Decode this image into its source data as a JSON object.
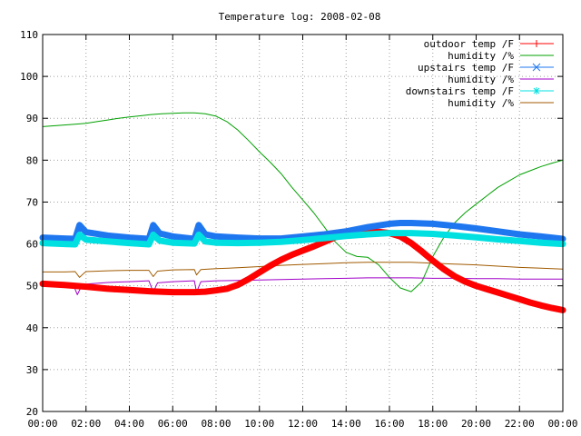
{
  "chart_data": {
    "type": "line",
    "title": "Temperature log: 2008-02-08",
    "xlabel": "",
    "ylabel": "",
    "xlim": [
      0,
      24
    ],
    "ylim": [
      20,
      110
    ],
    "x_ticks": [
      "00:00",
      "02:00",
      "04:00",
      "06:00",
      "08:00",
      "10:00",
      "12:00",
      "14:00",
      "16:00",
      "18:00",
      "20:00",
      "22:00",
      "00:00"
    ],
    "y_ticks": [
      "20",
      "30",
      "40",
      "50",
      "60",
      "70",
      "80",
      "90",
      "100",
      "110"
    ],
    "grid": true,
    "legend_position": "top-right",
    "series": [
      {
        "name": "outdoor temp /F",
        "color": "#ff0000",
        "marker": "plus",
        "thick": true,
        "x": [
          0,
          1,
          2,
          3,
          4,
          5,
          6,
          7,
          7.5,
          8,
          8.5,
          9,
          9.5,
          10,
          10.5,
          11,
          11.5,
          12,
          12.5,
          13,
          13.5,
          14,
          14.5,
          15,
          15.5,
          16,
          16.5,
          17,
          17.5,
          18,
          18.5,
          19,
          19.5,
          20,
          20.5,
          21,
          21.5,
          22,
          22.5,
          23,
          23.5,
          24
        ],
        "y": [
          50.5,
          50.2,
          49.8,
          49.3,
          49.0,
          48.7,
          48.5,
          48.5,
          48.6,
          48.9,
          49.3,
          50.2,
          51.6,
          53.2,
          54.8,
          56.2,
          57.4,
          58.4,
          59.4,
          60.5,
          61.6,
          62.4,
          62.9,
          63.0,
          62.9,
          62.6,
          61.8,
          60.2,
          58.2,
          56.0,
          54.0,
          52.3,
          51.0,
          50.0,
          49.2,
          48.4,
          47.6,
          46.8,
          46.0,
          45.3,
          44.7,
          44.2
        ]
      },
      {
        "name": "humidity /%",
        "color": "#00a000",
        "marker": "",
        "thick": false,
        "x": [
          0,
          0.5,
          1,
          1.5,
          2,
          2.5,
          3,
          3.5,
          4,
          4.5,
          5,
          5.5,
          6,
          6.5,
          7,
          7.5,
          8,
          8.5,
          9,
          9.5,
          10,
          10.5,
          11,
          11.5,
          12,
          12.5,
          13,
          13.5,
          14,
          14.5,
          15,
          15.5,
          16,
          16.5,
          17,
          17.5,
          18,
          18.5,
          19,
          19.5,
          20,
          20.5,
          21,
          21.5,
          22,
          22.5,
          23,
          23.5,
          24
        ],
        "y": [
          88,
          88.2,
          88.4,
          88.6,
          88.8,
          89.2,
          89.6,
          90,
          90.3,
          90.6,
          90.9,
          91.1,
          91.2,
          91.3,
          91.3,
          91.1,
          90.5,
          89.2,
          87.2,
          84.7,
          82,
          79.5,
          76.8,
          73.5,
          70.5,
          67.5,
          64,
          60.5,
          58,
          57,
          56.8,
          55,
          52,
          49.5,
          48.6,
          51,
          57,
          61.5,
          65,
          67.5,
          69.5,
          71.5,
          73.5,
          75,
          76.5,
          77.5,
          78.5,
          79.3,
          80
        ]
      },
      {
        "name": "upstairs temp /F",
        "color": "#1f77f0",
        "marker": "cross",
        "thick": true,
        "x": [
          0,
          1,
          1.5,
          1.7,
          2,
          3,
          4,
          4.9,
          5.1,
          5.4,
          6,
          7,
          7.2,
          7.5,
          8,
          9,
          10,
          11,
          12,
          13,
          14,
          15,
          16,
          16.5,
          17,
          18,
          19,
          20,
          21,
          22,
          23,
          24
        ],
        "y": [
          61.5,
          61.3,
          61.2,
          64.5,
          62.8,
          62,
          61.5,
          61.2,
          64.5,
          62.5,
          61.8,
          61.2,
          64.5,
          62.3,
          61.8,
          61.5,
          61.3,
          61.3,
          61.8,
          62.3,
          63,
          64,
          64.8,
          65,
          65,
          64.8,
          64.3,
          63.7,
          63,
          62.3,
          61.8,
          61.2
        ]
      },
      {
        "name": "humidity /%",
        "color": "#a000c8",
        "marker": "",
        "thick": false,
        "x": [
          0,
          1,
          1.4,
          1.6,
          1.8,
          2,
          3,
          4,
          4.9,
          5.1,
          5.3,
          6,
          7,
          7.1,
          7.3,
          8,
          9,
          10,
          11,
          12,
          13,
          14,
          15,
          16,
          17,
          18,
          19,
          20,
          21,
          22,
          23,
          24
        ],
        "y": [
          50.8,
          50.5,
          50.4,
          47.9,
          50,
          50.4,
          50.8,
          51,
          51.2,
          48.5,
          50.7,
          51,
          51.2,
          48.5,
          51,
          51.2,
          51.3,
          51.4,
          51.5,
          51.6,
          51.7,
          51.8,
          51.9,
          51.9,
          51.9,
          51.8,
          51.8,
          51.7,
          51.7,
          51.6,
          51.6,
          51.6
        ]
      },
      {
        "name": "downstairs temp /F",
        "color": "#00e0e0",
        "marker": "star",
        "thick": true,
        "x": [
          0,
          1,
          1.5,
          1.7,
          2,
          3,
          4,
          4.9,
          5.1,
          5.4,
          6,
          7,
          7.2,
          7.5,
          8,
          9,
          10,
          11,
          12,
          13,
          14,
          15,
          16,
          17,
          18,
          19,
          20,
          21,
          22,
          23,
          24
        ],
        "y": [
          60.2,
          60,
          59.9,
          62.2,
          61,
          60.6,
          60.2,
          59.9,
          62.2,
          60.8,
          60.3,
          60.1,
          62.2,
          60.6,
          60.3,
          60.2,
          60.3,
          60.5,
          60.9,
          61.4,
          61.9,
          62.3,
          62.6,
          62.6,
          62.4,
          62,
          61.6,
          61.1,
          60.7,
          60.3,
          60
        ]
      },
      {
        "name": "humidity /%",
        "color": "#a05a00",
        "marker": "",
        "thick": false,
        "x": [
          0,
          1,
          1.5,
          1.7,
          1.9,
          2,
          3,
          4,
          4.9,
          5.1,
          5.3,
          6,
          7,
          7.1,
          7.3,
          8,
          9,
          10,
          11,
          12,
          13,
          14,
          15,
          16,
          17,
          18,
          19,
          20,
          21,
          22,
          23,
          24
        ],
        "y": [
          53.3,
          53.3,
          53.4,
          52,
          53,
          53.4,
          53.6,
          53.7,
          53.7,
          52.2,
          53.5,
          53.8,
          53.9,
          52.6,
          53.9,
          54.1,
          54.3,
          54.6,
          54.9,
          55.1,
          55.3,
          55.5,
          55.6,
          55.6,
          55.6,
          55.4,
          55.2,
          55,
          54.7,
          54.4,
          54.2,
          54
        ]
      }
    ]
  }
}
